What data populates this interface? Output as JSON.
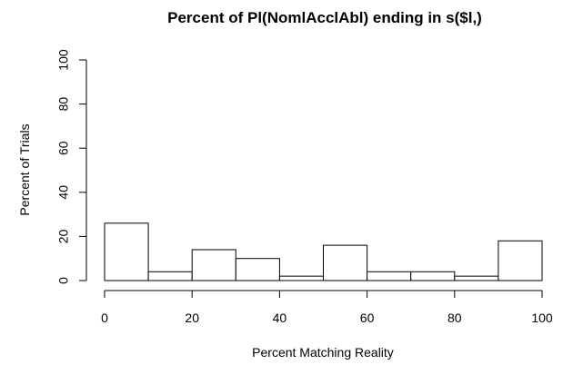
{
  "chart_data": {
    "type": "bar",
    "title": "Percent of Pl(NomlAcclAbl) ending in s($l,)",
    "xlabel": "Percent Matching Reality",
    "ylabel": "Percent of Trials",
    "xlim": [
      0,
      100
    ],
    "ylim": [
      0,
      100
    ],
    "x_ticks": [
      0,
      20,
      40,
      60,
      80,
      100
    ],
    "y_ticks": [
      0,
      20,
      40,
      60,
      80,
      100
    ],
    "bins": [
      {
        "start": 0,
        "end": 10,
        "value": 26
      },
      {
        "start": 10,
        "end": 20,
        "value": 4
      },
      {
        "start": 20,
        "end": 30,
        "value": 14
      },
      {
        "start": 30,
        "end": 40,
        "value": 10
      },
      {
        "start": 40,
        "end": 50,
        "value": 2
      },
      {
        "start": 50,
        "end": 60,
        "value": 16
      },
      {
        "start": 60,
        "end": 70,
        "value": 4
      },
      {
        "start": 70,
        "end": 80,
        "value": 4
      },
      {
        "start": 80,
        "end": 90,
        "value": 2
      },
      {
        "start": 90,
        "end": 100,
        "value": 18
      }
    ]
  }
}
